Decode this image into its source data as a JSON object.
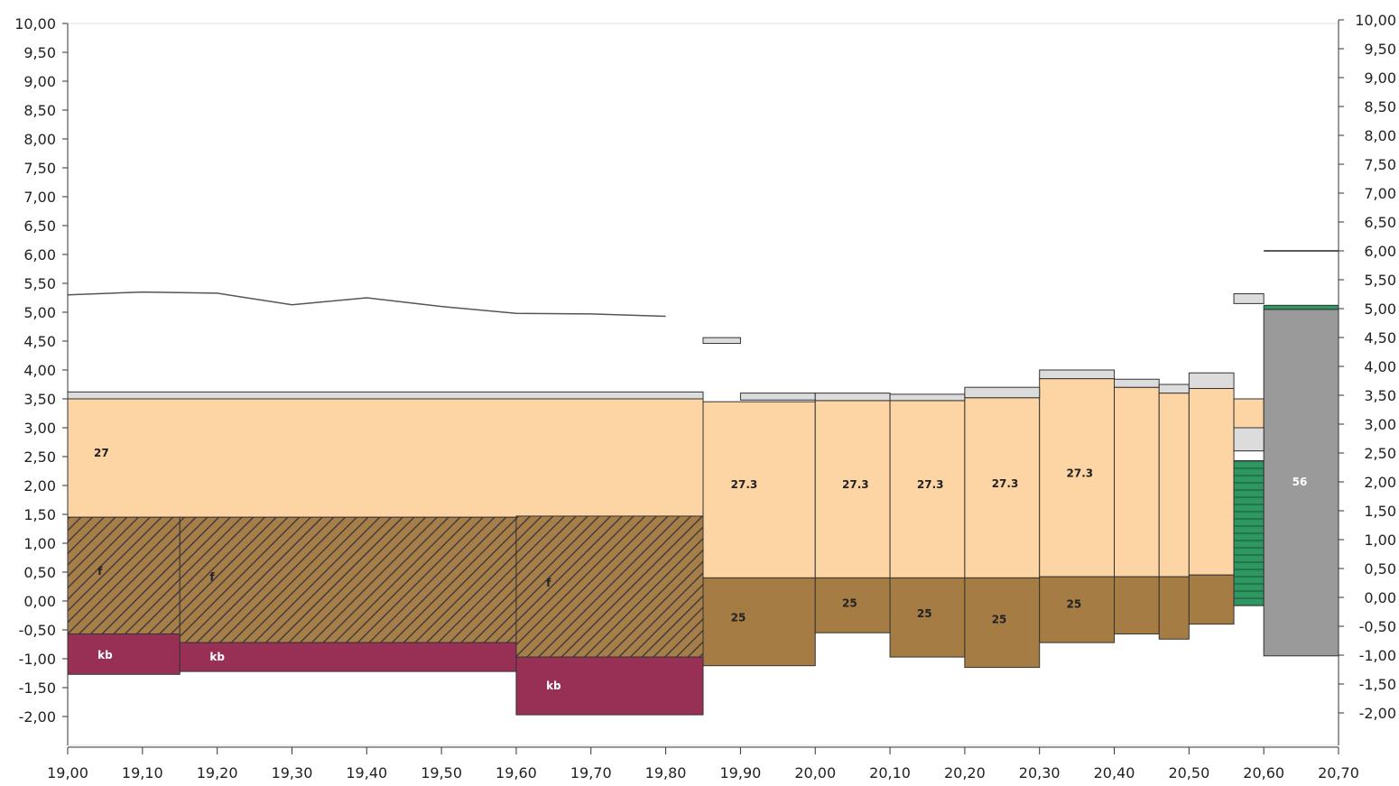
{
  "chart_data": {
    "type": "area",
    "title": "",
    "xlabel": "",
    "ylabel": "",
    "xlim": [
      19.0,
      20.7
    ],
    "ylim": [
      -2.5,
      10.0
    ],
    "x_ticks": [
      "19,00",
      "19,10",
      "19,20",
      "19,30",
      "19,40",
      "19,50",
      "19,60",
      "19,70",
      "19,80",
      "19,90",
      "20,00",
      "20,10",
      "20,20",
      "20,30",
      "20,40",
      "20,50",
      "20,60",
      "20,70"
    ],
    "y_ticks_left": [
      "10,00",
      "9,50",
      "9,00",
      "8,50",
      "8,00",
      "7,50",
      "7,00",
      "6,50",
      "6,00",
      "5,50",
      "5,00",
      "4,50",
      "4,00",
      "3,50",
      "3,00",
      "2,50",
      "2,00",
      "1,50",
      "1,00",
      "0,50",
      "0,00",
      "-0,50",
      "-1,00",
      "-1,50",
      "-2,00"
    ],
    "y_ticks_right": [
      "10,00",
      "9,50",
      "9,00",
      "8,50",
      "8,00",
      "7,50",
      "7,00",
      "6,50",
      "6,00",
      "5,50",
      "5,00",
      "4,50",
      "4,00",
      "3,50",
      "3,00",
      "2,50",
      "2,00",
      "1,50",
      "1,00",
      "0,50",
      "0,00",
      "-0,50",
      "-1,00",
      "-1,50",
      "-2,00"
    ],
    "colors": {
      "layer_27": "#fdd5a4",
      "layer_25": "#a57c44",
      "layer_f": "#a87e48",
      "layer_f_hatch": "#3f3f3f",
      "layer_kb": "#982f55",
      "layer_56": "#9a9a9a",
      "layer_green": "#2f9862",
      "pavement": "#dcdcdc",
      "surface_line": "#555555",
      "outline": "#333333"
    },
    "surface_line": [
      [
        19.0,
        5.3
      ],
      [
        19.1,
        5.35
      ],
      [
        19.2,
        5.33
      ],
      [
        19.3,
        5.13
      ],
      [
        19.4,
        5.25
      ],
      [
        19.5,
        5.1
      ],
      [
        19.6,
        4.98
      ],
      [
        19.7,
        4.97
      ],
      [
        19.8,
        4.93
      ]
    ],
    "level_line": {
      "x0": 20.6,
      "x1": 20.7,
      "y": 6.0
    },
    "pavement": [
      {
        "x0": 19.0,
        "x1": 19.85,
        "y0": 3.5,
        "y1": 3.62
      },
      {
        "x0": 19.85,
        "x1": 19.9,
        "y0": 4.46,
        "y1": 4.56
      },
      {
        "x0": 19.9,
        "x1": 20.0,
        "y0": 3.48,
        "y1": 3.6
      },
      {
        "x0": 20.0,
        "x1": 20.1,
        "y0": 3.47,
        "y1": 3.6
      },
      {
        "x0": 20.1,
        "x1": 20.2,
        "y0": 3.47,
        "y1": 3.58
      },
      {
        "x0": 20.2,
        "x1": 20.3,
        "y0": 3.52,
        "y1": 3.7
      },
      {
        "x0": 20.3,
        "x1": 20.4,
        "y0": 3.85,
        "y1": 4.0
      },
      {
        "x0": 20.4,
        "x1": 20.46,
        "y0": 3.7,
        "y1": 3.84
      },
      {
        "x0": 20.46,
        "x1": 20.5,
        "y0": 3.6,
        "y1": 3.75
      },
      {
        "x0": 20.5,
        "x1": 20.56,
        "y0": 3.68,
        "y1": 3.95
      },
      {
        "x0": 20.56,
        "x1": 20.6,
        "y0": 5.15,
        "y1": 5.32
      },
      {
        "x0": 20.56,
        "x1": 20.6,
        "y0": 2.6,
        "y1": 3.0
      }
    ],
    "layers": [
      {
        "x0": 19.0,
        "x1": 19.85,
        "y0": 1.45,
        "y1": 3.5,
        "type": "27",
        "label": "27",
        "label_x": 19.035,
        "label_y": 2.5
      },
      {
        "x0": 19.85,
        "x1": 20.0,
        "y0": 0.4,
        "y1": 3.45,
        "type": "27",
        "label": "27.3",
        "label_x": 19.887,
        "label_y": 1.95
      },
      {
        "x0": 20.0,
        "x1": 20.1,
        "y0": 0.4,
        "y1": 3.47,
        "type": "27",
        "label": "27.3",
        "label_x": 20.036,
        "label_y": 1.95
      },
      {
        "x0": 20.1,
        "x1": 20.2,
        "y0": 0.4,
        "y1": 3.47,
        "type": "27",
        "label": "27.3",
        "label_x": 20.136,
        "label_y": 1.95
      },
      {
        "x0": 20.2,
        "x1": 20.3,
        "y0": 0.4,
        "y1": 3.52,
        "type": "27",
        "label": "27.3",
        "label_x": 20.236,
        "label_y": 1.97
      },
      {
        "x0": 20.3,
        "x1": 20.4,
        "y0": 0.42,
        "y1": 3.85,
        "type": "27",
        "label": "27.3",
        "label_x": 20.336,
        "label_y": 2.15
      },
      {
        "x0": 20.4,
        "x1": 20.46,
        "y0": 0.42,
        "y1": 3.7,
        "type": "27",
        "label": "",
        "label_x": 0,
        "label_y": 0
      },
      {
        "x0": 20.46,
        "x1": 20.5,
        "y0": 0.42,
        "y1": 3.6,
        "type": "27",
        "label": "",
        "label_x": 0,
        "label_y": 0
      },
      {
        "x0": 20.5,
        "x1": 20.56,
        "y0": 0.45,
        "y1": 3.68,
        "type": "27",
        "label": "",
        "label_x": 0,
        "label_y": 0
      },
      {
        "x0": 20.56,
        "x1": 20.6,
        "y0": 2.6,
        "y1": 3.5,
        "type": "27",
        "label": "",
        "label_x": 0,
        "label_y": 0
      },
      {
        "x0": 19.85,
        "x1": 20.0,
        "y0": -1.12,
        "y1": 0.4,
        "type": "25",
        "label": "25",
        "label_x": 19.887,
        "label_y": -0.35
      },
      {
        "x0": 20.0,
        "x1": 20.1,
        "y0": -0.55,
        "y1": 0.4,
        "type": "25",
        "label": "25",
        "label_x": 20.036,
        "label_y": -0.1
      },
      {
        "x0": 20.1,
        "x1": 20.2,
        "y0": -0.97,
        "y1": 0.4,
        "type": "25",
        "label": "25",
        "label_x": 20.136,
        "label_y": -0.28
      },
      {
        "x0": 20.2,
        "x1": 20.3,
        "y0": -1.15,
        "y1": 0.4,
        "type": "25",
        "label": "25",
        "label_x": 20.236,
        "label_y": -0.38
      },
      {
        "x0": 20.3,
        "x1": 20.4,
        "y0": -0.72,
        "y1": 0.42,
        "type": "25",
        "label": "25",
        "label_x": 20.336,
        "label_y": -0.12
      },
      {
        "x0": 20.4,
        "x1": 20.46,
        "y0": -0.57,
        "y1": 0.42,
        "type": "25",
        "label": "",
        "label_x": 0,
        "label_y": 0
      },
      {
        "x0": 20.46,
        "x1": 20.5,
        "y0": -0.66,
        "y1": 0.42,
        "type": "25",
        "label": "",
        "label_x": 0,
        "label_y": 0
      },
      {
        "x0": 20.5,
        "x1": 20.56,
        "y0": -0.4,
        "y1": 0.45,
        "type": "25",
        "label": "",
        "label_x": 0,
        "label_y": 0
      },
      {
        "x0": 19.0,
        "x1": 19.15,
        "y0": -0.57,
        "y1": 1.45,
        "type": "f",
        "label": "f",
        "label_x": 19.04,
        "label_y": 0.45
      },
      {
        "x0": 19.15,
        "x1": 19.6,
        "y0": -0.72,
        "y1": 1.45,
        "type": "f",
        "label": "f",
        "label_x": 19.19,
        "label_y": 0.35
      },
      {
        "x0": 19.6,
        "x1": 19.85,
        "y0": -0.97,
        "y1": 1.47,
        "type": "f",
        "label": "f",
        "label_x": 19.64,
        "label_y": 0.25
      },
      {
        "x0": 19.0,
        "x1": 19.15,
        "y0": -1.27,
        "y1": -0.57,
        "type": "kb",
        "label": "kb",
        "label_x": 19.04,
        "label_y": -1.0
      },
      {
        "x0": 19.15,
        "x1": 19.6,
        "y0": -1.22,
        "y1": -0.72,
        "type": "kb",
        "label": "kb",
        "label_x": 19.19,
        "label_y": -1.03
      },
      {
        "x0": 19.6,
        "x1": 19.85,
        "y0": -1.97,
        "y1": -0.97,
        "type": "kb",
        "label": "kb",
        "label_x": 19.64,
        "label_y": -1.53
      },
      {
        "x0": 20.56,
        "x1": 20.6,
        "y0": -0.08,
        "y1": 2.43,
        "type": "green",
        "label": "",
        "label_x": 0,
        "label_y": 0
      },
      {
        "x0": 20.6,
        "x1": 20.7,
        "y0": -0.95,
        "y1": 5.05,
        "type": "56",
        "label": "56",
        "label_x": 20.638,
        "label_y": 2.0
      },
      {
        "x0": 20.6,
        "x1": 20.7,
        "y0": 5.05,
        "y1": 5.12,
        "type": "green",
        "label": "",
        "label_x": 0,
        "label_y": 0
      }
    ]
  }
}
